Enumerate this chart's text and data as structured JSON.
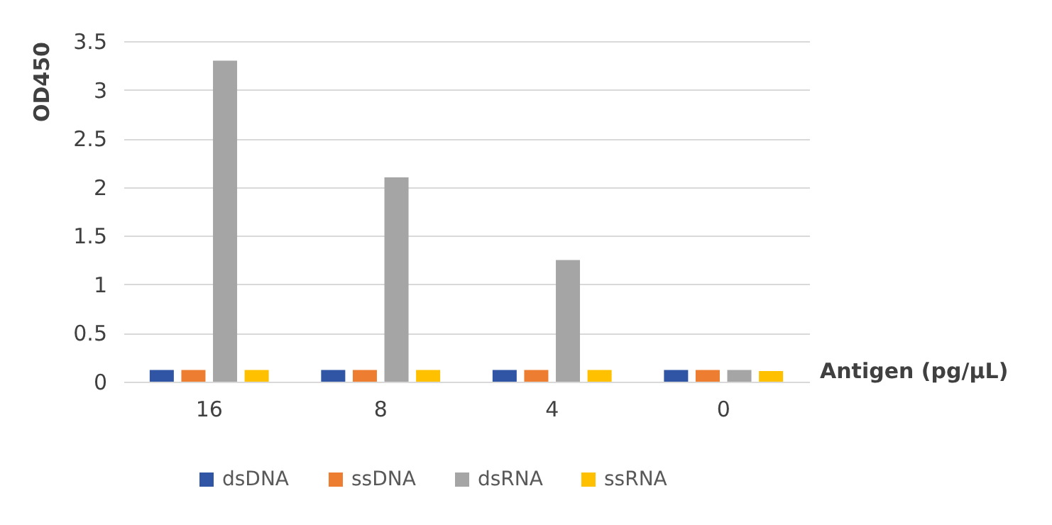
{
  "chart_data": {
    "type": "bar",
    "xlabel": "Antigen (pg/μL)",
    "ylabel": "OD450",
    "categories": [
      "16",
      "8",
      "4",
      "0"
    ],
    "series": [
      {
        "name": "dsDNA",
        "color": "#2f55a4",
        "values": [
          0.12,
          0.12,
          0.12,
          0.12
        ]
      },
      {
        "name": "ssDNA",
        "color": "#ed7d31",
        "values": [
          0.12,
          0.12,
          0.12,
          0.12
        ]
      },
      {
        "name": "dsRNA",
        "color": "#a5a5a5",
        "values": [
          3.3,
          2.1,
          1.25,
          0.12
        ]
      },
      {
        "name": "ssRNA",
        "color": "#ffc000",
        "values": [
          0.12,
          0.12,
          0.12,
          0.11
        ]
      }
    ],
    "ylim": [
      0,
      3.5
    ],
    "yticks": [
      0,
      0.5,
      1,
      1.5,
      2,
      2.5,
      3,
      3.5
    ],
    "grid": "y",
    "legend": "bottom"
  }
}
